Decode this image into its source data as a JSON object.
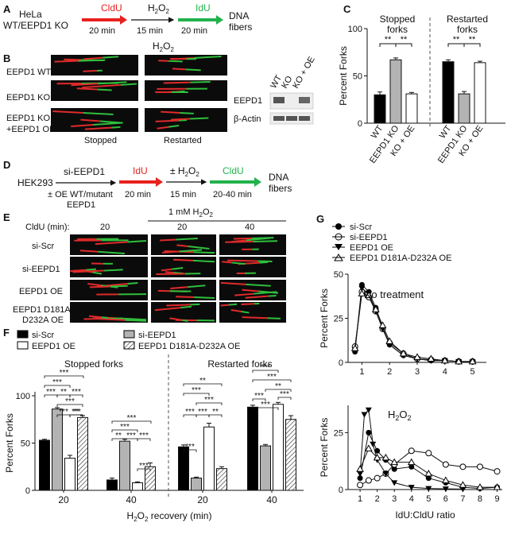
{
  "panel_labels": [
    "A",
    "B",
    "C",
    "D",
    "E",
    "F",
    "G"
  ],
  "panelA": {
    "cell": "HeLa",
    "cell2": "WT/EEPD1 KO",
    "step1": "CldU",
    "step1_time": "20 min",
    "step2": "H2O2",
    "step2_time": "15 min",
    "step3": "IdU",
    "step3_time": "20 min",
    "end": "DNA",
    "end2": "fibers",
    "colors": {
      "cldu": "#e8211e",
      "idu": "#22b24c"
    }
  },
  "panelB": {
    "treatment": "H2O2",
    "rows": [
      "EEPD1 WT",
      "EEPD1 KO",
      "EEPD1 KO",
      "+EEPD1 OE"
    ],
    "cols": [
      "Stopped",
      "Restarted"
    ],
    "blot_lanes": [
      "WT",
      "KO",
      "KO + OE"
    ],
    "blot_rows": [
      "EEPD1",
      "β-Actin"
    ]
  },
  "panelD": {
    "cell": "HEK293",
    "step1": "si-EEPD1",
    "step1_sub": "± OE WT/mutant",
    "step1_sub2": "EEPD1",
    "step2": "IdU",
    "step2_time": "20 min",
    "step3": "± H2O2",
    "step3_time": "15 min",
    "step4": "CldU",
    "step4_time": "20-40 min",
    "end": "DNA",
    "end2": "fibers"
  },
  "panelE": {
    "header_label": "CldU (min):",
    "header_h2o2": "1 mM H2O2",
    "times": [
      "20",
      "20",
      "40"
    ],
    "rows": [
      "si-Scr",
      "si-EEPD1",
      "EEPD1 OE",
      "EEPD1 D181A-",
      "D232A OE"
    ]
  },
  "chart_data": [
    {
      "panel": "C",
      "type": "bar",
      "ylabel": "Percent Forks",
      "ylim": [
        0,
        100
      ],
      "yticks": [
        0,
        50,
        100
      ],
      "groups": [
        "Stopped forks",
        "Restarted forks"
      ],
      "categories": [
        "WT",
        "EEPD1 KO",
        "KO + OE",
        "WT",
        "EEPD1 KO",
        "KO + OE"
      ],
      "values": [
        30,
        67,
        31,
        65,
        31,
        64
      ],
      "errors": [
        3,
        2,
        1.5,
        2,
        2.5,
        1.5
      ],
      "colors": [
        "#000000",
        "#b3b3b3",
        "#ffffff",
        "#000000",
        "#b3b3b3",
        "#ffffff"
      ],
      "significance": [
        "**",
        "**",
        "**",
        "**"
      ]
    },
    {
      "panel": "F",
      "type": "bar",
      "ylabel": "Percent Forks",
      "xlabel": "H2O2 recovery (min)",
      "ylim": [
        0,
        100
      ],
      "yticks": [
        0,
        50,
        100
      ],
      "groups": [
        "Stopped forks",
        "Restarted forks"
      ],
      "categories": [
        "20",
        "40",
        "20",
        "40"
      ],
      "series": [
        {
          "name": "si-Scr",
          "values": [
            53,
            11,
            46,
            88
          ],
          "errors": [
            1,
            2,
            2,
            2
          ],
          "fill": "#000000"
        },
        {
          "name": "si-EEPD1",
          "values": [
            86,
            52,
            13,
            47
          ],
          "errors": [
            1.5,
            2,
            1,
            1.5
          ],
          "fill": "#b3b3b3"
        },
        {
          "name": "EEPD1 OE",
          "values": [
            34,
            8,
            67,
            91
          ],
          "errors": [
            3,
            1,
            4,
            2
          ],
          "fill": "#ffffff"
        },
        {
          "name": "EEPD1 D181A-D232A OE",
          "values": [
            77,
            25,
            23,
            75
          ],
          "errors": [
            2,
            4,
            2,
            4
          ],
          "fill": "hatch"
        }
      ],
      "significance": [
        "***",
        "***",
        "***",
        "**",
        "***",
        "***",
        "**",
        "***",
        "***",
        "***",
        "***",
        "**",
        "***",
        "***",
        "***",
        "**",
        "***",
        "***",
        "***",
        "***",
        "**",
        "***",
        "***",
        "***",
        "**"
      ]
    },
    {
      "panel": "G-top",
      "type": "line",
      "title": "No treatment",
      "ylabel": "Percent Forks",
      "ylim": [
        0,
        50
      ],
      "yticks": [
        0,
        25,
        50
      ],
      "x": [
        0.75,
        1,
        1.25,
        1.5,
        1.75,
        2,
        2.5,
        3,
        3.5,
        4,
        4.5,
        5
      ],
      "series": [
        {
          "name": "si-Scr",
          "marker": "filled-circle",
          "values": [
            6,
            44,
            40,
            31,
            20,
            10,
            4,
            2,
            1,
            1,
            0.5,
            0.3
          ]
        },
        {
          "name": "si-EEPD1",
          "marker": "open-circle",
          "values": [
            9,
            40,
            37,
            29,
            19,
            11,
            5,
            2,
            1.5,
            1,
            0.5,
            0.5
          ]
        },
        {
          "name": "EEPD1 OE",
          "marker": "filled-triangle-down",
          "values": [
            7,
            42,
            39,
            29,
            19,
            10,
            4,
            2,
            1,
            1,
            0.5,
            0.3
          ]
        },
        {
          "name": "EEPD1 D181A-D232A OE",
          "marker": "open-triangle-up",
          "values": [
            8,
            39,
            38,
            30,
            21,
            12,
            5,
            3,
            2,
            1,
            0.5,
            0.5
          ]
        }
      ],
      "xticks": [
        1,
        2,
        3,
        4,
        5
      ]
    },
    {
      "panel": "G-bottom",
      "type": "line",
      "title": "H2O2",
      "ylabel": "Percent Forks",
      "xlabel": "IdU:CldU ratio",
      "ylim": [
        0,
        37
      ],
      "yticks": [
        0,
        25
      ],
      "xticks": [
        1,
        2,
        3,
        4,
        5,
        6,
        7,
        8,
        9
      ],
      "series": [
        {
          "name": "si-Scr",
          "marker": "filled-circle",
          "x": [
            1,
            1.5,
            2,
            2.5,
            3,
            4,
            5,
            6,
            7,
            8,
            9
          ],
          "values": [
            5,
            25,
            17,
            13,
            9,
            10,
            5,
            3,
            1,
            0.5,
            1
          ]
        },
        {
          "name": "si-EEPD1",
          "marker": "open-circle",
          "x": [
            1,
            1.5,
            2,
            2.5,
            3,
            4,
            5,
            6,
            7,
            8,
            9
          ],
          "values": [
            2,
            4,
            5,
            7,
            11,
            17,
            16,
            11,
            10,
            10,
            8
          ]
        },
        {
          "name": "EEPD1 OE",
          "marker": "filled-triangle-down",
          "x": [
            1,
            1.25,
            1.5,
            1.75,
            2,
            2.5,
            3,
            4,
            5,
            6,
            7
          ],
          "values": [
            7,
            33,
            35,
            20,
            13,
            7,
            3,
            1,
            0.5,
            0.3,
            0.2
          ]
        },
        {
          "name": "EEPD1 D181A-D232A OE",
          "marker": "open-triangle-up",
          "x": [
            1,
            1.5,
            2,
            2.5,
            3,
            4,
            5,
            6,
            7,
            8,
            9
          ],
          "values": [
            9,
            18,
            14,
            14,
            12,
            12,
            7,
            4,
            2,
            1,
            1
          ]
        }
      ]
    }
  ],
  "legendF": [
    "si-Scr",
    "si-EEPD1",
    "EEPD1 OE",
    "EEPD1 D181A-D232A OE"
  ],
  "legendG": [
    "si-Scr",
    "si-EEPD1",
    "EEPD1 OE",
    "EEPD1 D181A-D232A OE"
  ]
}
